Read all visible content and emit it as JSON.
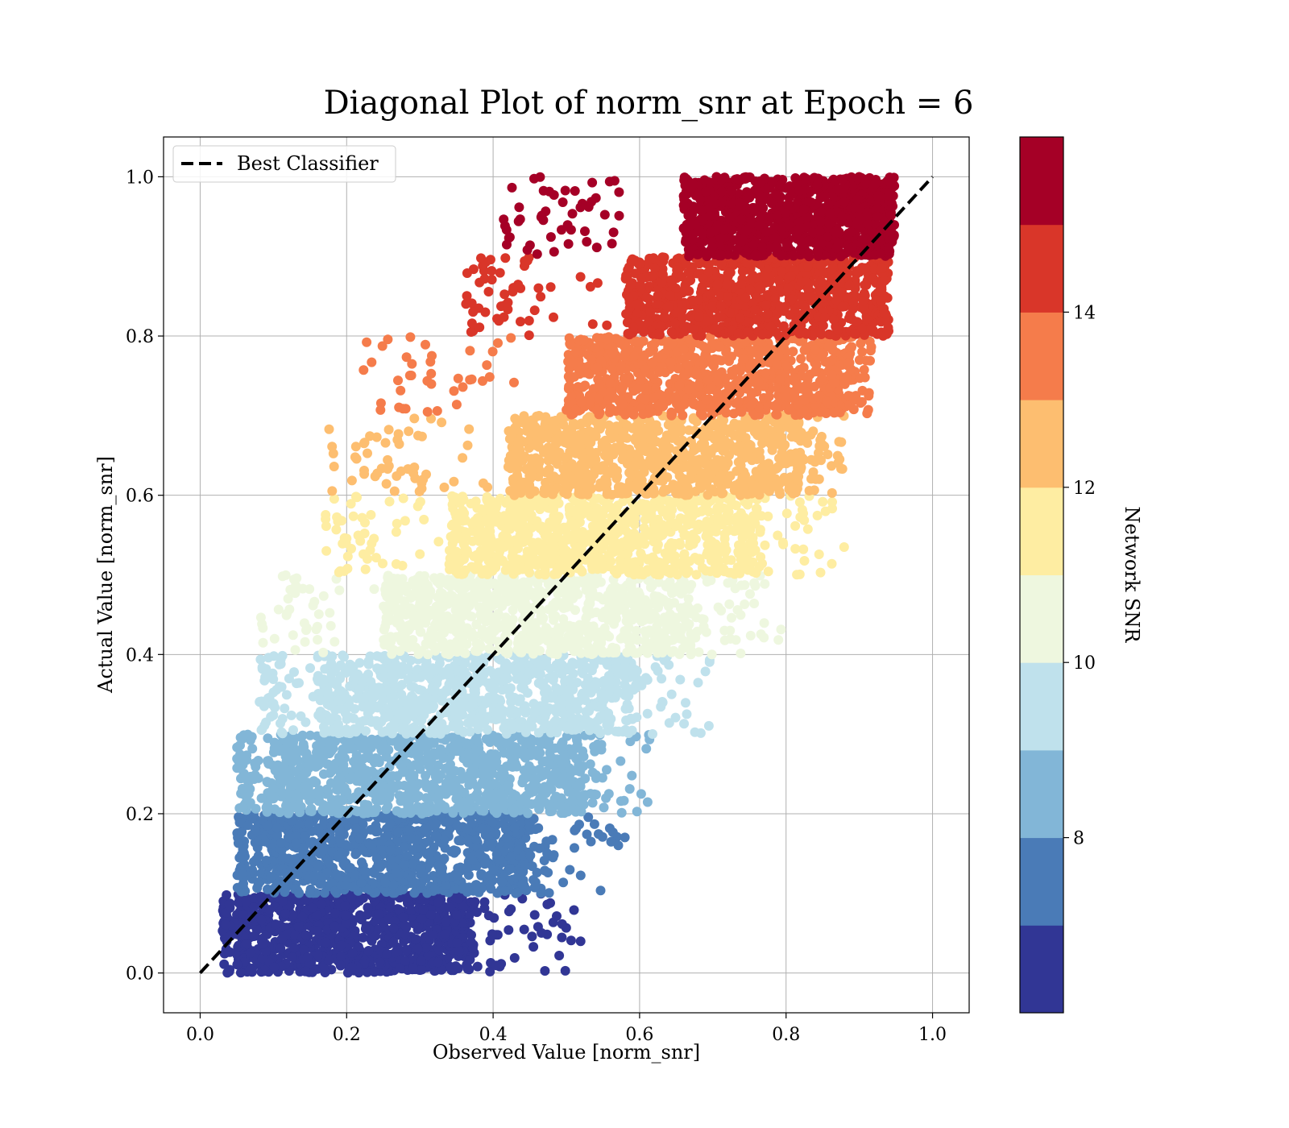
{
  "chart_data": {
    "type": "scatter",
    "title": "Diagonal Plot of norm_snr at Epoch = 6",
    "xlabel": "Observed Value [norm_snr]",
    "ylabel": "Actual Value [norm_snr]",
    "xlim": [
      -0.05,
      1.05
    ],
    "ylim": [
      -0.05,
      1.05
    ],
    "x_ticks": [
      "0.0",
      "0.2",
      "0.4",
      "0.6",
      "0.8",
      "1.0"
    ],
    "y_ticks": [
      "0.0",
      "0.2",
      "0.4",
      "0.6",
      "0.8",
      "1.0"
    ],
    "grid": true,
    "legend": {
      "placement": "upper-left",
      "entries": [
        "Best Classifier"
      ]
    },
    "reference_line": {
      "name": "Best Classifier",
      "x": [
        0.0,
        1.0
      ],
      "y": [
        0.0,
        1.0
      ],
      "style": "dashed",
      "color": "#000000"
    },
    "colorbar": {
      "label": "Network SNR",
      "range": [
        6.0,
        16.0
      ],
      "ticks": [
        "8",
        "10",
        "12",
        "14"
      ],
      "bins": [
        {
          "from": 6.0,
          "to": 7.0,
          "color": "#313695"
        },
        {
          "from": 7.0,
          "to": 8.0,
          "color": "#4a7bb7"
        },
        {
          "from": 8.0,
          "to": 9.0,
          "color": "#82b6d7"
        },
        {
          "from": 9.0,
          "to": 10.0,
          "color": "#bfe1ec"
        },
        {
          "from": 10.0,
          "to": 11.0,
          "color": "#eef7df"
        },
        {
          "from": 11.0,
          "to": 12.0,
          "color": "#feeda2"
        },
        {
          "from": 12.0,
          "to": 13.0,
          "color": "#fdbe70"
        },
        {
          "from": 13.0,
          "to": 14.0,
          "color": "#f57c4b"
        },
        {
          "from": 14.0,
          "to": 15.0,
          "color": "#d93629"
        },
        {
          "from": 15.0,
          "to": 16.0,
          "color": "#a50026"
        }
      ]
    },
    "series": [
      {
        "actual_band": [
          0.0,
          0.1
        ],
        "observed_core": [
          0.05,
          0.37
        ],
        "observed_tail": [
          0.03,
          0.52
        ]
      },
      {
        "actual_band": [
          0.1,
          0.2
        ],
        "observed_core": [
          0.07,
          0.45
        ],
        "observed_tail": [
          0.05,
          0.58
        ]
      },
      {
        "actual_band": [
          0.2,
          0.3
        ],
        "observed_core": [
          0.09,
          0.52
        ],
        "observed_tail": [
          0.05,
          0.62
        ]
      },
      {
        "actual_band": [
          0.3,
          0.4
        ],
        "observed_core": [
          0.16,
          0.59
        ],
        "observed_tail": [
          0.08,
          0.7
        ]
      },
      {
        "actual_band": [
          0.4,
          0.5
        ],
        "observed_core": [
          0.25,
          0.67
        ],
        "observed_tail": [
          0.08,
          0.8
        ]
      },
      {
        "actual_band": [
          0.5,
          0.6
        ],
        "observed_core": [
          0.34,
          0.76
        ],
        "observed_tail": [
          0.17,
          0.88
        ]
      },
      {
        "actual_band": [
          0.6,
          0.7
        ],
        "observed_core": [
          0.42,
          0.82
        ],
        "observed_tail": [
          0.17,
          0.89
        ]
      },
      {
        "actual_band": [
          0.7,
          0.8
        ],
        "observed_core": [
          0.5,
          0.88
        ],
        "observed_tail": [
          0.22,
          0.92
        ]
      },
      {
        "actual_band": [
          0.8,
          0.9
        ],
        "observed_core": [
          0.58,
          0.93
        ],
        "observed_tail": [
          0.36,
          0.94
        ]
      },
      {
        "actual_band": [
          0.9,
          1.0
        ],
        "observed_core": [
          0.66,
          0.94
        ],
        "observed_tail": [
          0.41,
          0.95
        ]
      }
    ]
  }
}
